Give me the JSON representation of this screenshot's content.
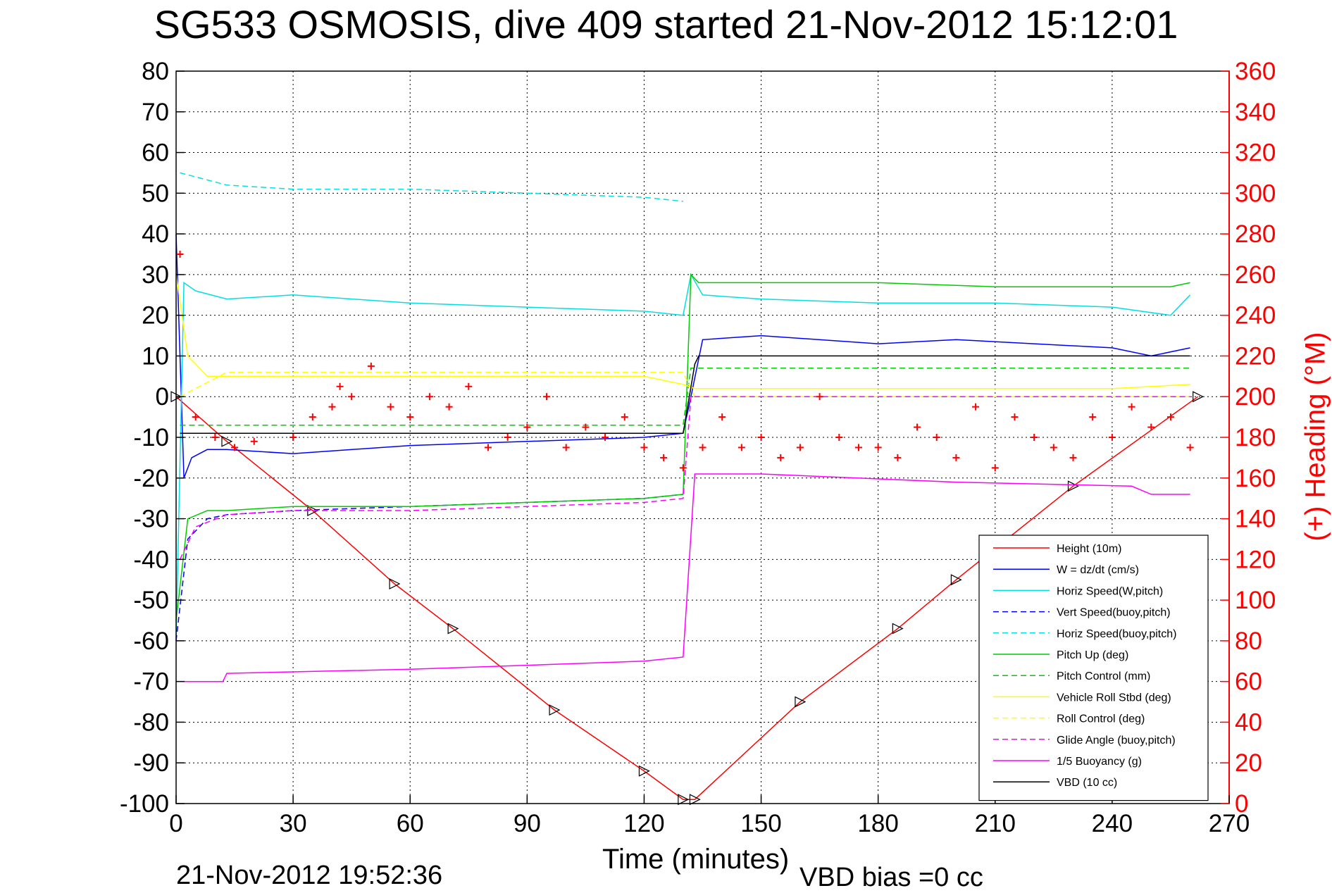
{
  "chart_data": {
    "type": "line",
    "title": "SG533 OSMOSIS, dive 409 started 21-Nov-2012 15:12:01",
    "xlabel": "Time (minutes)",
    "ylabel": "",
    "y2label": "(+) Heading (°M)",
    "footer_left": "21-Nov-2012 19:52:36",
    "footer_right": "VBD bias =0 cc",
    "xlim": [
      0,
      270
    ],
    "ylim": [
      -100,
      80
    ],
    "y2lim": [
      0,
      360
    ],
    "xticks": [
      0,
      30,
      60,
      90,
      120,
      150,
      180,
      210,
      240,
      270
    ],
    "yticks": [
      80,
      70,
      60,
      50,
      40,
      30,
      20,
      10,
      0,
      -10,
      -20,
      -30,
      -40,
      -50,
      -60,
      -70,
      -80,
      -90,
      -100
    ],
    "y2ticks": [
      360,
      340,
      320,
      300,
      280,
      260,
      240,
      220,
      200,
      180,
      160,
      140,
      120,
      100,
      80,
      60,
      40,
      20,
      0
    ],
    "grid": true,
    "legend_position": "bottom-right",
    "series": [
      {
        "name": "Height (10m)",
        "color": "#ff0000",
        "style": "solid",
        "x": [
          0,
          13,
          35,
          56,
          71,
          97,
          120,
          130,
          133,
          160,
          185,
          200,
          230,
          262
        ],
        "y": [
          0,
          -11,
          -28,
          -46,
          -57,
          -77,
          -92,
          -99,
          -99,
          -75,
          -57,
          -45,
          -22,
          0
        ]
      },
      {
        "name": "W = dz/dt (cm/s)",
        "color": "#0000ff",
        "style": "solid",
        "x": [
          0,
          2,
          4,
          8,
          13,
          30,
          60,
          90,
          120,
          130,
          132,
          135,
          150,
          180,
          200,
          240,
          250,
          260
        ],
        "y": [
          40,
          -20,
          -15,
          -13,
          -13,
          -14,
          -12,
          -11,
          -10,
          -9,
          0,
          14,
          15,
          13,
          14,
          12,
          10,
          12
        ]
      },
      {
        "name": "Horiz Speed(W,pitch)",
        "color": "#00e0e0",
        "style": "solid",
        "x": [
          0,
          2,
          5,
          13,
          30,
          60,
          90,
          120,
          130,
          132,
          135,
          150,
          180,
          210,
          240,
          255,
          260
        ],
        "y": [
          -60,
          28,
          26,
          24,
          25,
          23,
          22,
          21,
          20,
          30,
          25,
          24,
          23,
          23,
          22,
          20,
          25
        ]
      },
      {
        "name": "Vert Speed(buoy,pitch)",
        "color": "#0000ff",
        "style": "dashed",
        "x": [
          0,
          3,
          8,
          13,
          30,
          60,
          90,
          120,
          130
        ],
        "y": [
          -60,
          -35,
          -30,
          -29,
          -28,
          -27,
          -26,
          -25,
          -24
        ]
      },
      {
        "name": "Horiz Speed(buoy,pitch)",
        "color": "#00e0e0",
        "style": "dashed",
        "x": [
          1,
          5,
          13,
          30,
          60,
          90,
          120,
          130
        ],
        "y": [
          55,
          54,
          52,
          51,
          51,
          50,
          49,
          48
        ]
      },
      {
        "name": "Pitch Up (deg)",
        "color": "#00cc00",
        "style": "solid",
        "x": [
          0,
          3,
          8,
          13,
          30,
          60,
          90,
          120,
          130,
          132,
          134,
          150,
          180,
          210,
          240,
          255,
          260
        ],
        "y": [
          -55,
          -30,
          -28,
          -28,
          -27,
          -27,
          -26,
          -25,
          -24,
          30,
          28,
          28,
          28,
          27,
          27,
          27,
          28
        ]
      },
      {
        "name": "Pitch Control (mm)",
        "color": "#00cc00",
        "style": "dashed",
        "x": [
          1,
          130,
          132,
          260
        ],
        "y": [
          -7,
          -7,
          7,
          7
        ]
      },
      {
        "name": "Vehicle Roll Stbd (deg)",
        "color": "#ffff00",
        "style": "solid",
        "x": [
          0,
          3,
          8,
          13,
          30,
          60,
          90,
          120,
          130,
          133,
          150,
          180,
          210,
          240,
          260
        ],
        "y": [
          30,
          10,
          5,
          5,
          5,
          5,
          5,
          5,
          3,
          2,
          2,
          2,
          2,
          2,
          3
        ]
      },
      {
        "name": "Roll Control (deg)",
        "color": "#ffff00",
        "style": "dashed",
        "x": [
          1,
          13,
          60,
          120,
          130,
          133,
          260
        ],
        "y": [
          0,
          6,
          6,
          6,
          6,
          0,
          0
        ]
      },
      {
        "name": "Glide Angle (buoy,pitch)",
        "color": "#ff00ff",
        "style": "dashed",
        "x": [
          1,
          5,
          13,
          30,
          60,
          90,
          120,
          130,
          132,
          260
        ],
        "y": [
          -40,
          -32,
          -29,
          -28,
          -28,
          -27,
          -26,
          -25,
          0,
          0
        ]
      },
      {
        "name": "1/5 Buoyancy (g)",
        "color": "#ff00ff",
        "style": "solid",
        "x": [
          1,
          12,
          13,
          60,
          90,
          120,
          130,
          133,
          150,
          200,
          245,
          250,
          260
        ],
        "y": [
          -70,
          -70,
          -68,
          -67,
          -66,
          -65,
          -64,
          -19,
          -19,
          -21,
          -22,
          -24,
          -24
        ]
      },
      {
        "name": "VBD (10 cc)",
        "color": "#000000",
        "style": "solid",
        "x": [
          1,
          130,
          133,
          134,
          260
        ],
        "y": [
          -9,
          -9,
          8,
          10,
          10
        ]
      },
      {
        "name": "(+) Heading (°M)",
        "color": "#ff0000",
        "style": "plus-markers",
        "axis": "right",
        "x": [
          1,
          5,
          10,
          15,
          20,
          30,
          35,
          40,
          42,
          45,
          50,
          55,
          60,
          65,
          70,
          75,
          80,
          85,
          90,
          95,
          100,
          105,
          110,
          115,
          120,
          125,
          130,
          135,
          140,
          145,
          150,
          155,
          160,
          165,
          170,
          175,
          180,
          185,
          190,
          195,
          200,
          205,
          210,
          215,
          220,
          225,
          230,
          235,
          240,
          245,
          250,
          255,
          260
        ],
        "y": [
          270,
          190,
          180,
          175,
          178,
          180,
          190,
          195,
          205,
          200,
          215,
          195,
          190,
          200,
          195,
          205,
          175,
          180,
          185,
          200,
          175,
          185,
          180,
          190,
          175,
          170,
          165,
          175,
          190,
          175,
          180,
          170,
          175,
          200,
          180,
          175,
          175,
          170,
          185,
          180,
          170,
          195,
          165,
          190,
          180,
          175,
          170,
          190,
          180,
          195,
          185,
          190,
          175
        ]
      }
    ]
  }
}
